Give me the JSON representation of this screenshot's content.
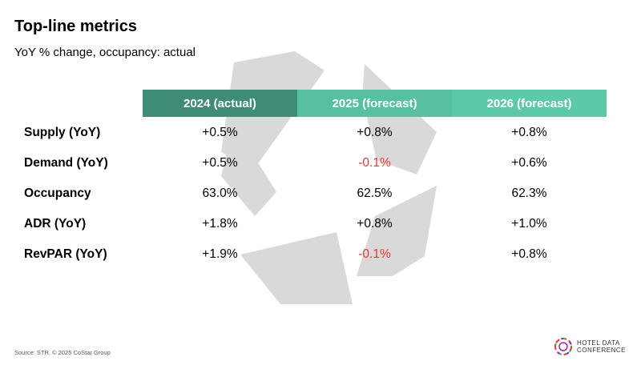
{
  "title": "Top-line metrics",
  "subtitle": "YoY % change, occupancy: actual",
  "table": {
    "columns": [
      "2024 (actual)",
      "2025 (forecast)",
      "2026 (forecast)"
    ],
    "rows": [
      {
        "label": "Supply (YoY)",
        "values": [
          "+0.5%",
          "+0.8%",
          "+0.8%"
        ]
      },
      {
        "label": "Demand (YoY)",
        "values": [
          "+0.5%",
          "-0.1%",
          "+0.6%"
        ]
      },
      {
        "label": "Occupancy",
        "values": [
          "63.0%",
          "62.5%",
          "62.3%"
        ]
      },
      {
        "label": "ADR (YoY)",
        "values": [
          "+1.8%",
          "+0.8%",
          "+1.0%"
        ]
      },
      {
        "label": "RevPAR (YoY)",
        "values": [
          "+1.9%",
          "-0.1%",
          "+0.8%"
        ]
      }
    ]
  },
  "colors": {
    "header_2024": "#3e8b77",
    "header_2025": "#56c0a0",
    "header_2026": "#5cc9a8",
    "negative": "#e53935",
    "watermark": "#d9d9d9"
  },
  "source": "Source: STR. © 2025 CoStar Group",
  "logo": {
    "line1": "HOTEL DATA",
    "line2": "CONFERENCE",
    "icon": "conference-logo-icon"
  }
}
